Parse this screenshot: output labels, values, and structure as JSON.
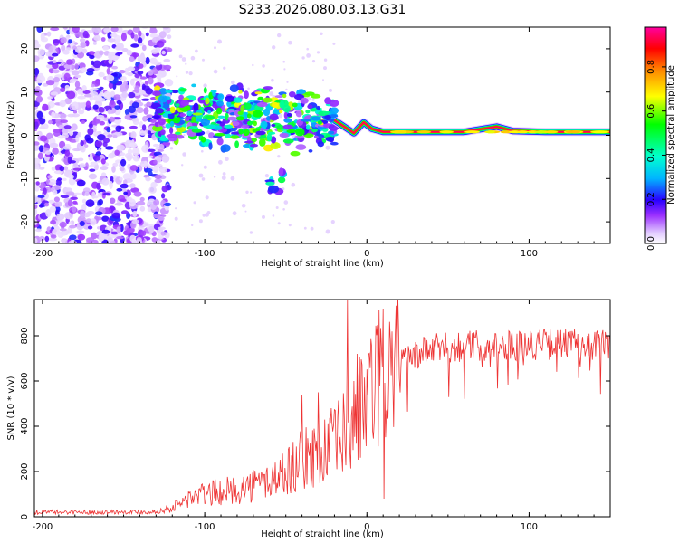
{
  "title": "S233.2026.080.03.13.G31",
  "chart_data": [
    {
      "type": "heatmap",
      "title": "S233.2026.080.03.13.G31",
      "xlabel": "Height of straight line (km)",
      "ylabel": "Frequency (Hz)",
      "xlim": [
        -205,
        150
      ],
      "ylim": [
        -25,
        25
      ],
      "xticks": [
        -200,
        -100,
        0,
        100
      ],
      "yticks": [
        -20,
        -10,
        0,
        10,
        20
      ],
      "colorbar": {
        "label": "Normalized spectral amplitude",
        "ticks": [
          0.0,
          0.2,
          0.4,
          0.6,
          0.8
        ],
        "tick_labels": [
          "0.0",
          "0.2",
          "0.4",
          "0.6",
          "0.8"
        ],
        "range": [
          0.0,
          0.98
        ]
      },
      "regions": [
        {
          "description": "scattered weak noise",
          "x_range": [
            -205,
            -122
          ],
          "freq_range": [
            -25,
            25
          ],
          "amplitude": [
            0.0,
            0.2
          ]
        },
        {
          "description": "clustered signal patches",
          "x_range": [
            -130,
            -20
          ],
          "freq_range": [
            -13,
            15
          ],
          "amplitude": [
            0.1,
            0.7
          ]
        },
        {
          "description": "coherent carrier line",
          "x_range": [
            -20,
            150
          ],
          "freq_center": 0.8,
          "freq_width": 2,
          "amplitude": [
            0.5,
            0.98
          ]
        }
      ],
      "ridge": [
        {
          "x": -20,
          "f": 3.5
        },
        {
          "x": -14,
          "f": 2.0
        },
        {
          "x": -8,
          "f": 0.5
        },
        {
          "x": -2,
          "f": 3.0
        },
        {
          "x": 3,
          "f": 1.5
        },
        {
          "x": 10,
          "f": 0.8
        },
        {
          "x": 60,
          "f": 0.8
        },
        {
          "x": 80,
          "f": 2.0
        },
        {
          "x": 90,
          "f": 1.0
        },
        {
          "x": 110,
          "f": 0.8
        },
        {
          "x": 150,
          "f": 0.8
        }
      ]
    },
    {
      "type": "line",
      "title": "",
      "xlabel": "Height of straight line (km)",
      "ylabel": "SNR (10 * v/v)",
      "xlim": [
        -205,
        150
      ],
      "ylim": [
        0,
        960
      ],
      "xticks": [
        -200,
        -100,
        0,
        100
      ],
      "yticks": [
        0,
        200,
        400,
        600,
        800
      ],
      "color": "#ee3333",
      "series": [
        {
          "name": "SNR",
          "trend": [
            {
              "x": -205,
              "y": 20
            },
            {
              "x": -130,
              "y": 22
            },
            {
              "x": -120,
              "y": 40
            },
            {
              "x": -110,
              "y": 80
            },
            {
              "x": -100,
              "y": 100
            },
            {
              "x": -80,
              "y": 120
            },
            {
              "x": -60,
              "y": 160
            },
            {
              "x": -50,
              "y": 200
            },
            {
              "x": -40,
              "y": 250
            },
            {
              "x": -30,
              "y": 280
            },
            {
              "x": -20,
              "y": 320
            },
            {
              "x": -15,
              "y": 360
            },
            {
              "x": -10,
              "y": 400
            },
            {
              "x": -5,
              "y": 460
            },
            {
              "x": 0,
              "y": 520
            },
            {
              "x": 5,
              "y": 580
            },
            {
              "x": 15,
              "y": 640
            },
            {
              "x": 25,
              "y": 700
            },
            {
              "x": 40,
              "y": 740
            },
            {
              "x": 60,
              "y": 755
            },
            {
              "x": 80,
              "y": 760
            },
            {
              "x": 100,
              "y": 760
            },
            {
              "x": 120,
              "y": 765
            },
            {
              "x": 150,
              "y": 760
            }
          ],
          "spikes": [
            {
              "x": -12,
              "y": 960
            },
            {
              "x": -8,
              "y": 600
            },
            {
              "x": -6,
              "y": 720
            },
            {
              "x": 10,
              "y": 920
            },
            {
              "x": 10.5,
              "y": 80
            },
            {
              "x": -40,
              "y": 540
            },
            {
              "x": -30,
              "y": 550
            }
          ]
        }
      ]
    }
  ]
}
